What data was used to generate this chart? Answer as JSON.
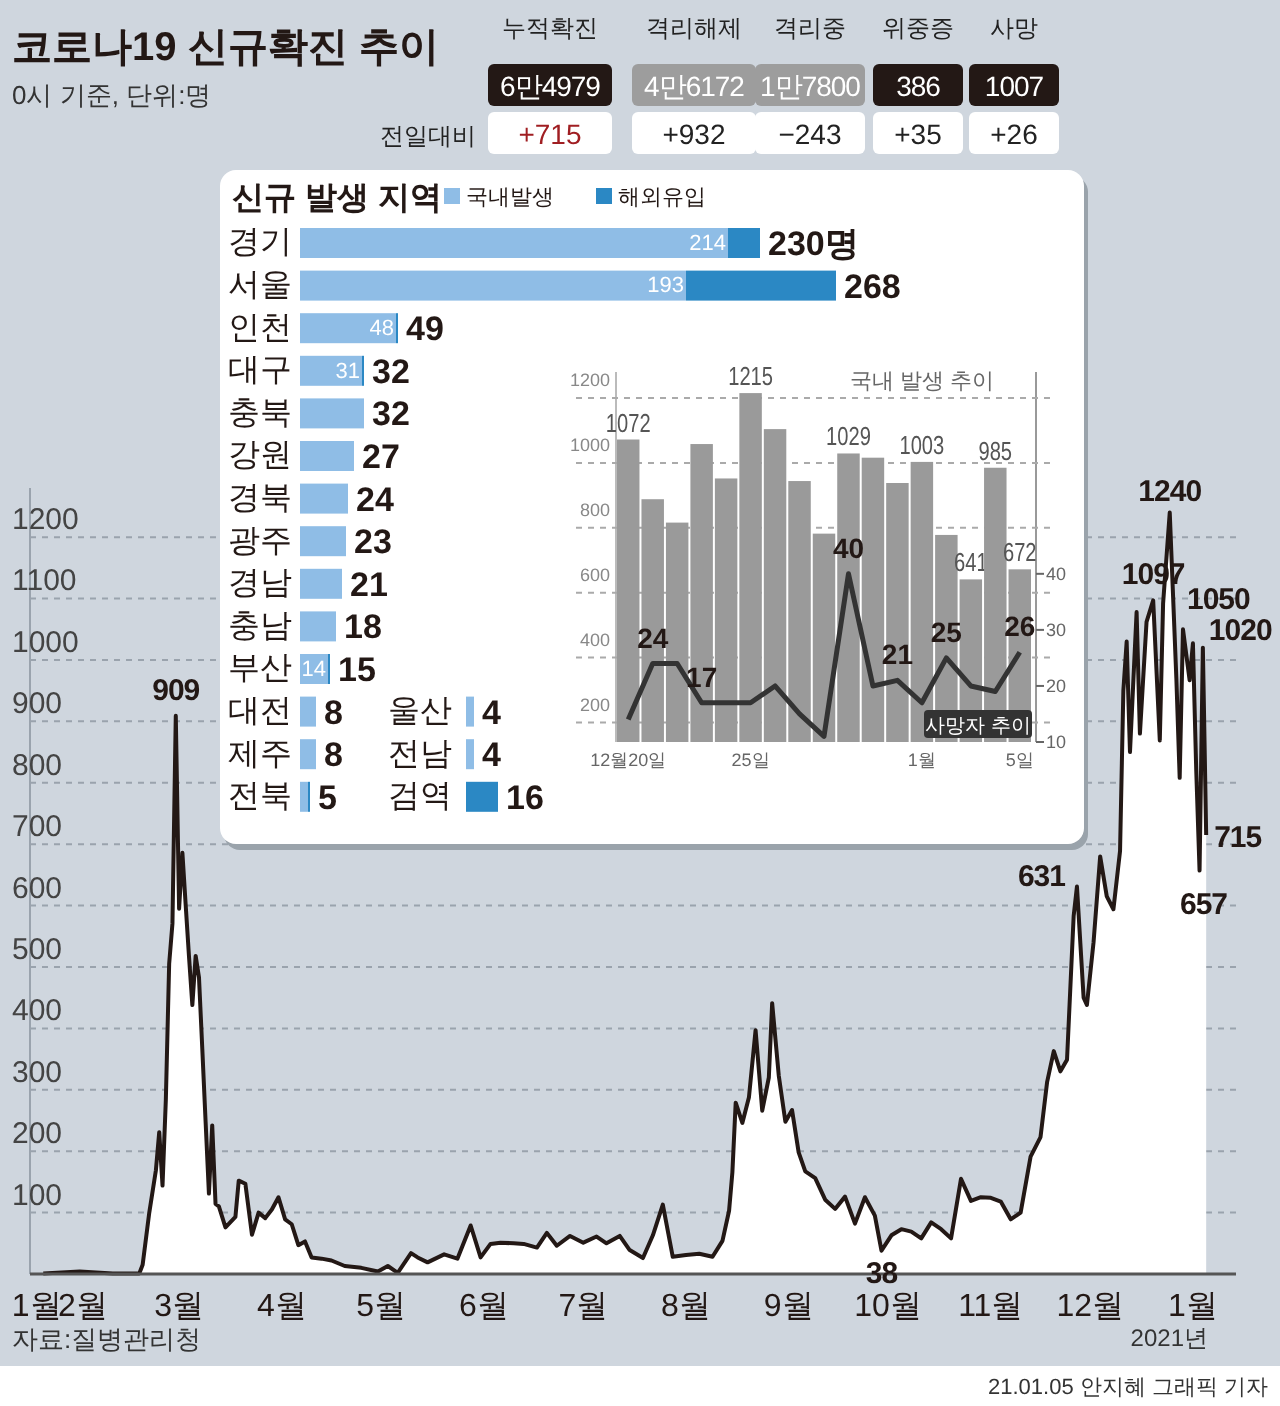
{
  "chart_data": [
    {
      "type": "area",
      "title": "코로나19 신규확진 추이",
      "subtitle": "0시 기준, 단위:명",
      "x": [
        "2020-01-20",
        "2020-01-31",
        "2020-02-10",
        "2020-02-18",
        "2020-02-19",
        "2020-02-21",
        "2020-02-23",
        "2020-02-24",
        "2020-02-25",
        "2020-02-26",
        "2020-02-27",
        "2020-02-28",
        "2020-02-29",
        "2020-03-01",
        "2020-03-02",
        "2020-03-03",
        "2020-03-04",
        "2020-03-05",
        "2020-03-06",
        "2020-03-07",
        "2020-03-08",
        "2020-03-09",
        "2020-03-10",
        "2020-03-11",
        "2020-03-12",
        "2020-03-13",
        "2020-03-15",
        "2020-03-18",
        "2020-03-19",
        "2020-03-21",
        "2020-03-23",
        "2020-03-25",
        "2020-03-27",
        "2020-03-29",
        "2020-03-31",
        "2020-04-02",
        "2020-04-04",
        "2020-04-06",
        "2020-04-08",
        "2020-04-10",
        "2020-04-13",
        "2020-04-16",
        "2020-04-20",
        "2020-04-25",
        "2020-04-30",
        "2020-05-03",
        "2020-05-06",
        "2020-05-10",
        "2020-05-12",
        "2020-05-15",
        "2020-05-20",
        "2020-05-24",
        "2020-05-28",
        "2020-05-31",
        "2020-06-03",
        "2020-06-06",
        "2020-06-10",
        "2020-06-13",
        "2020-06-17",
        "2020-06-20",
        "2020-06-23",
        "2020-06-27",
        "2020-07-01",
        "2020-07-05",
        "2020-07-08",
        "2020-07-12",
        "2020-07-15",
        "2020-07-19",
        "2020-07-22",
        "2020-07-25",
        "2020-07-28",
        "2020-08-01",
        "2020-08-05",
        "2020-08-09",
        "2020-08-12",
        "2020-08-14",
        "2020-08-15",
        "2020-08-16",
        "2020-08-18",
        "2020-08-20",
        "2020-08-22",
        "2020-08-24",
        "2020-08-26",
        "2020-08-27",
        "2020-08-29",
        "2020-08-31",
        "2020-09-02",
        "2020-09-04",
        "2020-09-06",
        "2020-09-09",
        "2020-09-12",
        "2020-09-15",
        "2020-09-18",
        "2020-09-21",
        "2020-09-24",
        "2020-09-27",
        "2020-09-29",
        "2020-10-02",
        "2020-10-05",
        "2020-10-08",
        "2020-10-11",
        "2020-10-14",
        "2020-10-17",
        "2020-10-20",
        "2020-10-23",
        "2020-10-26",
        "2020-10-29",
        "2020-11-01",
        "2020-11-04",
        "2020-11-07",
        "2020-11-10",
        "2020-11-13",
        "2020-11-16",
        "2020-11-18",
        "2020-11-20",
        "2020-11-22",
        "2020-11-24",
        "2020-11-26",
        "2020-11-27",
        "2020-11-29",
        "2020-11-30",
        "2020-12-02",
        "2020-12-04",
        "2020-12-06",
        "2020-12-08",
        "2020-12-10",
        "2020-12-11",
        "2020-12-12",
        "2020-12-13",
        "2020-12-15",
        "2020-12-16",
        "2020-12-18",
        "2020-12-20",
        "2020-12-22",
        "2020-12-23",
        "2020-12-25",
        "2020-12-27",
        "2020-12-28",
        "2020-12-29",
        "2020-12-31",
        "2021-01-01",
        "2021-01-02",
        "2021-01-03",
        "2021-01-04",
        "2021-01-05"
      ],
      "series": [
        {
          "color": "#231815",
          "values": [
            1,
            4,
            1,
            1,
            15,
            100,
            169,
            231,
            144,
            284,
            505,
            571,
            909,
            595,
            686,
            600,
            516,
            438,
            518,
            483,
            367,
            248,
            131,
            242,
            114,
            110,
            76,
            93,
            152,
            147,
            64,
            100,
            91,
            105,
            125,
            89,
            81,
            47,
            53,
            27,
            25,
            22,
            13,
            10,
            4,
            13,
            2,
            34,
            27,
            19,
            32,
            25,
            79,
            27,
            49,
            51,
            50,
            49,
            43,
            67,
            46,
            62,
            51,
            61,
            50,
            62,
            39,
            26,
            63,
            113,
            28,
            31,
            33,
            28,
            54,
            103,
            166,
            279,
            246,
            288,
            397,
            266,
            320,
            441,
            323,
            248,
            267,
            198,
            167,
            156,
            121,
            106,
            126,
            82,
            125,
            95,
            38,
            63,
            73,
            69,
            58,
            84,
            73,
            58,
            155,
            119,
            125,
            124,
            118,
            89,
            100,
            191,
            223,
            313,
            363,
            330,
            349,
            583,
            631,
            450,
            438,
            540,
            680,
            615,
            594,
            689,
            950,
            1030,
            850,
            1078,
            880,
            1062,
            1097,
            869,
            1092,
            1240,
            970,
            808,
            1050,
            967,
            1027,
            820,
            657,
            1020,
            715
          ]
        }
      ],
      "xlim": [
        "2020-01-16",
        "2021-01-14"
      ],
      "xticks": [
        {
          "value": "2020-01-18",
          "label": "1월"
        },
        {
          "value": "2020-02-01",
          "label": "2월"
        },
        {
          "value": "2020-03-01",
          "label": "3월"
        },
        {
          "value": "2020-04-01",
          "label": "4월"
        },
        {
          "value": "2020-05-01",
          "label": "5월"
        },
        {
          "value": "2020-06-01",
          "label": "6월"
        },
        {
          "value": "2020-07-01",
          "label": "7월"
        },
        {
          "value": "2020-08-01",
          "label": "8월"
        },
        {
          "value": "2020-09-01",
          "label": "9월"
        },
        {
          "value": "2020-10-01",
          "label": "10월"
        },
        {
          "value": "2020-11-01",
          "label": "11월"
        },
        {
          "value": "2020-12-01",
          "label": "12월"
        },
        {
          "value": "2021-01-01",
          "label": "1월"
        }
      ],
      "ylim": [
        0,
        1280
      ],
      "yticks": [
        {
          "value": 0,
          "label": null
        },
        100,
        200,
        300,
        400,
        500,
        600,
        700,
        800,
        900,
        1000,
        1100,
        1200
      ],
      "grid": "y",
      "annotations": [
        {
          "text": "909",
          "x": "2020-02-29",
          "y": 909
        },
        {
          "text": "38",
          "x": "2020-09-29",
          "y": 38
        },
        {
          "text": "631",
          "x": "2020-11-27",
          "y": 631
        },
        {
          "text": "1097",
          "x": "2020-12-20",
          "y": 1097
        },
        {
          "text": "1240",
          "x": "2020-12-25",
          "y": 1240
        },
        {
          "text": "1050",
          "x": "2020-12-29",
          "y": 1050
        },
        {
          "text": "657",
          "x": "2021-01-03",
          "y": 657
        },
        {
          "text": "1020",
          "x": "2021-01-04",
          "y": 1020
        },
        {
          "text": "715",
          "x": "2021-01-05",
          "y": 715
        },
        "2021년",
        "자료:질병관리청",
        "21.01.05 안지혜 그래픽 기자"
      ]
    },
    {
      "type": "other",
      "annotations": [
        "누적확진",
        "격리해제",
        "격리중",
        "위중증",
        "사망",
        "6만4979",
        "4만6172",
        "1만7800",
        "386",
        "1007",
        "전일대비",
        "+715",
        "+932",
        "−243",
        "+35",
        "+26"
      ],
      "colors": [
        "#231815",
        "#9d9d9d",
        "#9d9d9d",
        "#231815",
        "#231815"
      ]
    },
    {
      "type": "bar",
      "title": "신규 발생 지역",
      "orientation": "horizontal",
      "stacked": true,
      "legend": "top",
      "categories": [
        "경기",
        "서울",
        "인천",
        "대구",
        "충북",
        "강원",
        "경북",
        "광주",
        "경남",
        "충남",
        "부산",
        "대전",
        "제주",
        "전북"
      ],
      "series": [
        {
          "name": "국내발생",
          "color": "#8fbde6",
          "values": [
            214,
            193,
            48,
            31,
            32,
            27,
            24,
            23,
            21,
            18,
            14,
            8,
            8,
            4
          ],
          "value_labels": [
            "214",
            "193",
            "48",
            "31",
            null,
            null,
            null,
            null,
            null,
            null,
            "14",
            null,
            null,
            null
          ]
        },
        {
          "name": "해외유입",
          "color": "#2b88c4",
          "values": [
            16,
            75,
            1,
            1,
            0,
            0,
            0,
            0,
            0,
            0,
            1,
            0,
            0,
            1
          ]
        }
      ],
      "totals": [
        "230명",
        "268",
        "49",
        "32",
        "32",
        "27",
        "24",
        "23",
        "21",
        "18",
        "15",
        "8",
        "8",
        "5"
      ]
    },
    {
      "type": "bar",
      "orientation": "horizontal",
      "data_labels": true,
      "categories": [
        "울산",
        "전남",
        "검역"
      ],
      "values": [
        4,
        4,
        16
      ],
      "colors": [
        "#8fbde6",
        "#8fbde6",
        "#2b88c4"
      ]
    },
    {
      "type": "bar",
      "title": "국내 발생 추이",
      "categories": [
        "12월20일",
        null,
        null,
        null,
        null,
        "25일",
        null,
        null,
        null,
        null,
        null,
        null,
        "1월",
        null,
        null,
        null,
        "5일"
      ],
      "series": [
        {
          "color": "#9a9a9a",
          "values": [
            1072,
            888,
            816,
            1058,
            952,
            1215,
            1104,
            944,
            782,
            1029,
            1016,
            938,
            1003,
            778,
            641,
            985,
            672
          ],
          "value_labels": [
            "1072",
            null,
            null,
            null,
            null,
            "1215",
            null,
            null,
            null,
            "1029",
            null,
            null,
            "1003",
            null,
            "641",
            "985",
            "672"
          ]
        },
        {
          "name": "사망자 추이",
          "type": "line",
          "axis": "y2",
          "color": "#333333",
          "values": [
            14,
            24,
            24,
            17,
            17,
            17,
            20,
            15,
            11,
            40,
            20,
            21,
            17,
            25,
            20,
            19,
            26
          ],
          "value_labels": [
            null,
            "24",
            null,
            "17",
            null,
            null,
            null,
            null,
            null,
            "40",
            null,
            "21",
            null,
            "25",
            null,
            null,
            "26"
          ]
        }
      ],
      "ylim": [
        140,
        1280
      ],
      "yticks": [
        200,
        400,
        600,
        800,
        1000,
        1200
      ],
      "y2lim": [
        10,
        76
      ],
      "y2label": null,
      "y2ticks": [
        10,
        20,
        30,
        40
      ],
      "grid": "y"
    }
  ]
}
